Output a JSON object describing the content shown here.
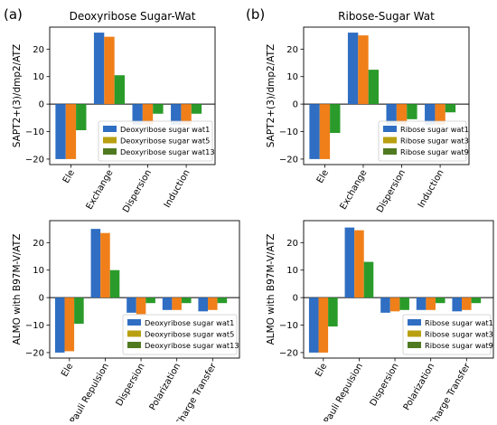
{
  "panel_labels": [
    "(a)",
    "(b)"
  ],
  "colors": {
    "s1": "#2f6ec2",
    "s2": "#f07f19",
    "s3": "#2a9b2a",
    "legend_s2": "#b8a010",
    "legend_s3": "#4f7a20"
  },
  "chart_data": [
    {
      "type": "bar",
      "title": "Deoxyribose Sugar-Wat",
      "ylabel": "SAPT2+(3)/dmp2/ATZ",
      "categories": [
        "Ele",
        "Exchange",
        "Dispersion",
        "Induction"
      ],
      "series": [
        {
          "name": "Deoxyribose sugar wat1",
          "values": [
            -20,
            26,
            -7.5,
            -7.5
          ]
        },
        {
          "name": "Deoxyribose sugar wat5",
          "values": [
            -20,
            24.5,
            -7.5,
            -7.5
          ]
        },
        {
          "name": "Deoxyribose sugar wat13",
          "values": [
            -9.5,
            10.5,
            -3.5,
            -3.5
          ]
        }
      ],
      "ylim": [
        -22,
        28
      ],
      "yticks": [
        -20,
        -10,
        0,
        10,
        20
      ],
      "legend": "lower-right"
    },
    {
      "type": "bar",
      "title": "Ribose-Sugar Wat",
      "ylabel": "SAPT2+(3)/dmp2/ATZ",
      "categories": [
        "Ele",
        "Exchange",
        "Dispersion",
        "Induction"
      ],
      "series": [
        {
          "name": "Ribose sugar wat1",
          "values": [
            -20,
            26,
            -7.5,
            -7.5
          ]
        },
        {
          "name": "Ribose sugar wat3",
          "values": [
            -20,
            25,
            -7.5,
            -7.5
          ]
        },
        {
          "name": "Ribose sugar wat9",
          "values": [
            -10.5,
            12.5,
            -5.5,
            -3
          ]
        }
      ],
      "ylim": [
        -22,
        28
      ],
      "yticks": [
        -20,
        -10,
        0,
        10,
        20
      ],
      "legend": "lower-right"
    },
    {
      "type": "bar",
      "title": "",
      "ylabel": "ALMO with B97M-V/ATZ",
      "categories": [
        "Ele",
        "Pauli Repulsion",
        "Dispersion",
        "Polarization",
        "Charge Transfer"
      ],
      "series": [
        {
          "name": "Deoxyribose sugar wat1",
          "values": [
            -20,
            25,
            -5.5,
            -4.5,
            -5
          ]
        },
        {
          "name": "Deoxyribose sugar wat5",
          "values": [
            -19.5,
            23.5,
            -6,
            -4.5,
            -4.5
          ]
        },
        {
          "name": "Deoxyribose sugar wat13",
          "values": [
            -9.5,
            10,
            -2,
            -2,
            -2
          ]
        }
      ],
      "ylim": [
        -22,
        28
      ],
      "yticks": [
        -20,
        -10,
        0,
        10,
        20
      ],
      "legend": "lower-right"
    },
    {
      "type": "bar",
      "title": "",
      "ylabel": "ALMO with B97M-V/ATZ",
      "categories": [
        "Ele",
        "Pauli Repulsion",
        "Dispersion",
        "Polarization",
        "Charge Transfer"
      ],
      "series": [
        {
          "name": "Ribose sugar wat1",
          "values": [
            -20,
            25.5,
            -5.5,
            -4.5,
            -5
          ]
        },
        {
          "name": "Ribose sugar wat3",
          "values": [
            -20,
            24.5,
            -5,
            -4.5,
            -4.5
          ]
        },
        {
          "name": "Ribose sugar wat9",
          "values": [
            -10.5,
            13,
            -4.5,
            -2,
            -2
          ]
        }
      ],
      "ylim": [
        -22,
        28
      ],
      "yticks": [
        -20,
        -10,
        0,
        10,
        20
      ],
      "legend": "lower-right"
    }
  ]
}
